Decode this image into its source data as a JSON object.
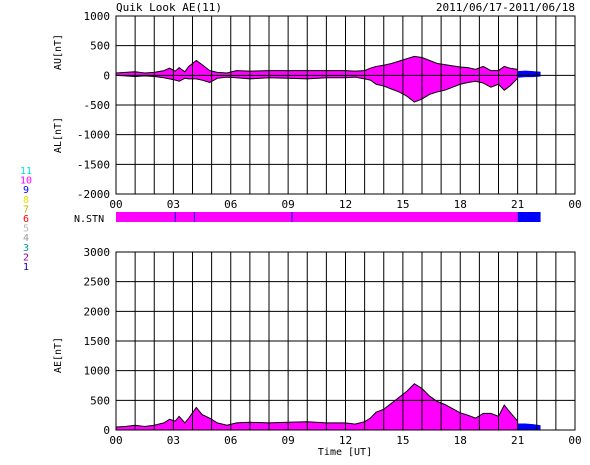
{
  "header": {
    "title": "Quik Look AE(11)",
    "date_range": "2011/06/17-2011/06/18"
  },
  "colors": {
    "fill_main": "#ff00ff",
    "fill_recent": "#0000ff",
    "grid": "#000000",
    "background": "#ffffff"
  },
  "legend": {
    "items": [
      {
        "label": "11",
        "color": "#00e5e5"
      },
      {
        "label": "10",
        "color": "#ff00ff"
      },
      {
        "label": "9",
        "color": "#0000ff"
      },
      {
        "label": "8",
        "color": "#e5e500"
      },
      {
        "label": "7",
        "color": "#b8b800"
      },
      {
        "label": "6",
        "color": "#ff0000"
      },
      {
        "label": "5",
        "color": "#bbbbbb"
      },
      {
        "label": "4",
        "color": "#999999"
      },
      {
        "label": "3",
        "color": "#009999"
      },
      {
        "label": "2",
        "color": "#990099"
      },
      {
        "label": "1",
        "color": "#0000cc"
      }
    ]
  },
  "chart_data": [
    {
      "type": "area",
      "panel": "AU/AL",
      "ylabel_top": "AU[nT]",
      "ylabel_bottom": "AL[nT]",
      "xlabel": "",
      "ylim": [
        -2000,
        1000
      ],
      "yticks": [
        1000,
        500,
        0,
        -500,
        -1000,
        -1500,
        -2000
      ],
      "xlim": [
        0,
        24
      ],
      "xticks": [
        "00",
        "03",
        "06",
        "09",
        "12",
        "15",
        "18",
        "21",
        "00"
      ],
      "grid": true,
      "series": [
        {
          "role": "AU",
          "x": [
            0,
            0.5,
            1,
            1.5,
            2,
            2.5,
            2.8,
            3.1,
            3.3,
            3.6,
            3.8,
            4.2,
            4.5,
            4.9,
            5.3,
            5.8,
            6.3,
            7,
            8,
            9,
            10,
            11,
            12,
            12.5,
            13,
            13.3,
            13.6,
            14,
            14.4,
            14.8,
            15.2,
            15.6,
            16,
            16.4,
            16.8,
            17.2,
            17.6,
            18,
            18.4,
            18.8,
            19.2,
            19.6,
            20,
            20.3,
            20.6,
            21
          ],
          "y": [
            40,
            50,
            60,
            40,
            50,
            80,
            120,
            70,
            130,
            60,
            150,
            250,
            180,
            80,
            50,
            40,
            80,
            70,
            80,
            80,
            80,
            80,
            80,
            70,
            80,
            120,
            150,
            170,
            200,
            240,
            280,
            320,
            300,
            250,
            200,
            180,
            160,
            140,
            130,
            100,
            150,
            80,
            80,
            150,
            120,
            100
          ]
        },
        {
          "role": "AL",
          "x": [
            0,
            0.5,
            1,
            1.5,
            2,
            2.5,
            2.8,
            3.1,
            3.3,
            3.6,
            3.8,
            4.2,
            4.5,
            4.9,
            5.3,
            5.8,
            6.3,
            7,
            8,
            9,
            10,
            11,
            12,
            12.5,
            13,
            13.3,
            13.6,
            14,
            14.4,
            14.8,
            15.2,
            15.6,
            16,
            16.4,
            16.8,
            17.2,
            17.6,
            18,
            18.4,
            18.8,
            19.2,
            19.6,
            20,
            20.3,
            20.6,
            21
          ],
          "y": [
            0,
            -10,
            -20,
            -10,
            -20,
            -40,
            -60,
            -80,
            -100,
            -50,
            -60,
            -60,
            -80,
            -120,
            -50,
            -30,
            -40,
            -60,
            -40,
            -50,
            -60,
            -40,
            -40,
            -30,
            -60,
            -80,
            -150,
            -180,
            -230,
            -280,
            -350,
            -450,
            -400,
            -320,
            -280,
            -250,
            -200,
            -150,
            -120,
            -100,
            -130,
            -200,
            -150,
            -250,
            -180,
            -50
          ]
        },
        {
          "role": "AU-recent",
          "x": [
            21,
            21.4,
            21.8,
            22.2
          ],
          "y": [
            70,
            80,
            70,
            60
          ]
        },
        {
          "role": "AL-recent",
          "x": [
            21,
            21.4,
            21.8,
            22.2
          ],
          "y": [
            -40,
            -30,
            -30,
            -20
          ]
        }
      ]
    },
    {
      "type": "area",
      "panel": "AE",
      "ylabel": "AE[nT]",
      "xlabel": "Time [UT]",
      "ylim": [
        0,
        3000
      ],
      "yticks": [
        3000,
        2500,
        2000,
        1500,
        1000,
        500,
        0
      ],
      "xlim": [
        0,
        24
      ],
      "xticks": [
        "00",
        "03",
        "06",
        "09",
        "12",
        "15",
        "18",
        "21",
        "00"
      ],
      "grid": true,
      "series": [
        {
          "role": "AE",
          "x": [
            0,
            0.5,
            1,
            1.5,
            2,
            2.5,
            2.8,
            3.1,
            3.3,
            3.6,
            3.8,
            4.2,
            4.5,
            4.9,
            5.3,
            5.8,
            6.3,
            7,
            8,
            9,
            10,
            11,
            12,
            12.5,
            13,
            13.3,
            13.6,
            14,
            14.4,
            14.8,
            15.2,
            15.6,
            16,
            16.4,
            16.8,
            17.2,
            17.6,
            18,
            18.4,
            18.8,
            19.2,
            19.6,
            20,
            20.3,
            20.6,
            21
          ],
          "y": [
            50,
            60,
            80,
            60,
            80,
            120,
            180,
            150,
            230,
            120,
            200,
            380,
            260,
            200,
            120,
            80,
            120,
            130,
            120,
            130,
            140,
            120,
            120,
            100,
            140,
            200,
            300,
            350,
            450,
            550,
            650,
            780,
            700,
            570,
            480,
            430,
            360,
            290,
            250,
            200,
            280,
            280,
            230,
            420,
            300,
            150
          ]
        },
        {
          "role": "AE-recent",
          "x": [
            21,
            21.4,
            21.8,
            22.2
          ],
          "y": [
            110,
            110,
            100,
            80
          ]
        }
      ]
    }
  ],
  "station_bar": {
    "label": "N.STN",
    "segments": [
      {
        "from": 0,
        "to": 21,
        "color": "#ff00ff"
      },
      {
        "from": 21,
        "to": 22.2,
        "color": "#0000ff"
      }
    ],
    "markers": [
      3.1,
      4.1,
      9.2
    ]
  }
}
